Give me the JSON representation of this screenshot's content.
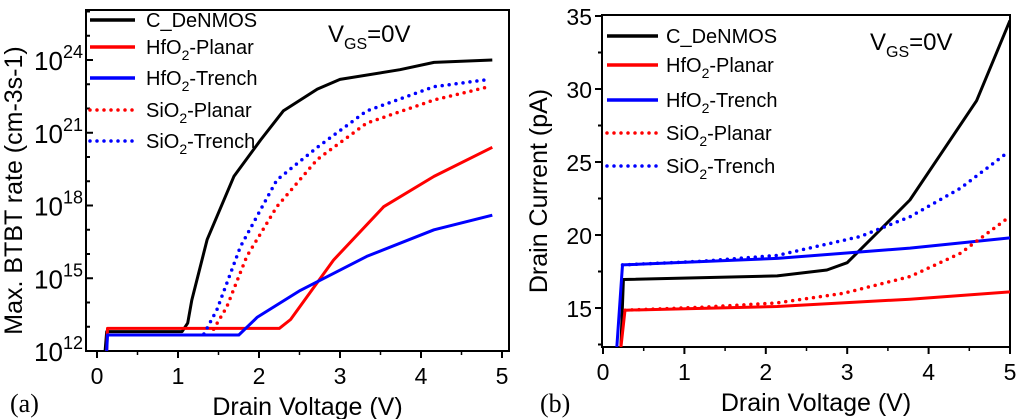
{
  "chart_data": [
    {
      "type": "line",
      "panel_label": "(a)",
      "xlabel": "Drain Voltage (V)",
      "ylabel": "Max. BTBT rate (cm-3s-1)",
      "yscale": "log",
      "xlim": [
        -0.1,
        5.1
      ],
      "ylim_exponent": [
        12,
        26
      ],
      "xticks": [
        "0",
        "1",
        "2",
        "3",
        "4",
        "5"
      ],
      "yticks": [
        {
          "base": "10",
          "exp": "12"
        },
        {
          "base": "10",
          "exp": "15"
        },
        {
          "base": "10",
          "exp": "18"
        },
        {
          "base": "10",
          "exp": "21"
        },
        {
          "base": "10",
          "exp": "24"
        }
      ],
      "annotation": {
        "main": "V",
        "sub": "GS",
        "rest": "=0V"
      },
      "legend_position": "top-left",
      "series": [
        {
          "name": "C_DeNMOS",
          "label": {
            "pre": "C_DeNMOS",
            "sub": "",
            "post": ""
          },
          "color": "#000000",
          "style": "solid",
          "points": [
            [
              0.1,
              12
            ],
            [
              0.12,
              12.8
            ],
            [
              1.05,
              12.8
            ],
            [
              1.12,
              13.15
            ],
            [
              1.17,
              14.1
            ],
            [
              1.36,
              16.6
            ],
            [
              1.69,
              19.2
            ],
            [
              2.02,
              20.7
            ],
            [
              2.3,
              21.9
            ],
            [
              2.72,
              22.8
            ],
            [
              3.0,
              23.2
            ],
            [
              3.74,
              23.6
            ],
            [
              4.16,
              23.9
            ],
            [
              4.88,
              24.0
            ]
          ]
        },
        {
          "name": "HfO2-Planar",
          "label": {
            "pre": "HfO",
            "sub": "2",
            "post": "-Planar"
          },
          "color": "#ff0000",
          "style": "solid",
          "points": [
            [
              0.12,
              12
            ],
            [
              0.13,
              12.93
            ],
            [
              2.25,
              12.93
            ],
            [
              2.39,
              13.3
            ],
            [
              2.92,
              15.75
            ],
            [
              3.54,
              17.95
            ],
            [
              4.16,
              19.2
            ],
            [
              4.88,
              20.4
            ]
          ]
        },
        {
          "name": "HfO2-Trench",
          "label": {
            "pre": "HfO",
            "sub": "2",
            "post": "-Trench"
          },
          "color": "#0000ff",
          "style": "solid",
          "points": [
            [
              0.12,
              12
            ],
            [
              0.13,
              12.66
            ],
            [
              1.75,
              12.66
            ],
            [
              1.98,
              13.4
            ],
            [
              2.51,
              14.5
            ],
            [
              3.33,
              15.9
            ],
            [
              4.16,
              17.0
            ],
            [
              4.88,
              17.6
            ]
          ]
        },
        {
          "name": "SiO2-Planar",
          "label": {
            "pre": "SiO",
            "sub": "2",
            "post": "-Planar"
          },
          "color": "#ff0000",
          "style": "dotted",
          "points": [
            [
              1.44,
              12.9
            ],
            [
              1.6,
              13.8
            ],
            [
              1.85,
              15.9
            ],
            [
              2.22,
              17.95
            ],
            [
              2.72,
              19.9
            ],
            [
              3.33,
              21.4
            ],
            [
              4.16,
              22.35
            ],
            [
              4.84,
              22.9
            ]
          ]
        },
        {
          "name": "SiO2-Trench",
          "label": {
            "pre": "SiO",
            "sub": "2",
            "post": "-Trench"
          },
          "color": "#0000ff",
          "style": "dotted",
          "points": [
            [
              1.32,
              12.7
            ],
            [
              1.48,
              13.7
            ],
            [
              1.77,
              16.3
            ],
            [
              2.22,
              19.05
            ],
            [
              2.72,
              20.4
            ],
            [
              3.33,
              21.9
            ],
            [
              4.16,
              22.9
            ],
            [
              4.84,
              23.2
            ]
          ]
        }
      ]
    },
    {
      "type": "line",
      "panel_label": "(b)",
      "xlabel": "Drain Voltage (V)",
      "ylabel": "Drain Current (pA)",
      "yscale": "linear",
      "xlim": [
        0,
        5
      ],
      "ylim": [
        12.3,
        35
      ],
      "xticks": [
        "0",
        "1",
        "2",
        "3",
        "4",
        "5"
      ],
      "yticks": [
        "15",
        "20",
        "25",
        "30",
        "35"
      ],
      "annotation": {
        "main": "V",
        "sub": "GS",
        "rest": "=0V"
      },
      "legend_position": "top-left",
      "series": [
        {
          "name": "C_DeNMOS",
          "label": {
            "pre": "C_DeNMOS",
            "sub": "",
            "post": ""
          },
          "color": "#000000",
          "style": "solid",
          "points": [
            [
              0.22,
              12.3
            ],
            [
              0.25,
              16.95
            ],
            [
              2.14,
              17.2
            ],
            [
              2.75,
              17.6
            ],
            [
              3.0,
              18.1
            ],
            [
              3.36,
              20.1
            ],
            [
              3.77,
              22.4
            ],
            [
              4.18,
              25.8
            ],
            [
              4.59,
              29.2
            ],
            [
              5.0,
              34.7
            ]
          ]
        },
        {
          "name": "HfO2-Planar",
          "label": {
            "pre": "HfO",
            "sub": "2",
            "post": "-Planar"
          },
          "color": "#ff0000",
          "style": "solid",
          "points": [
            [
              0.22,
              12.3
            ],
            [
              0.27,
              14.85
            ],
            [
              2.14,
              15.1
            ],
            [
              3.77,
              15.6
            ],
            [
              5.0,
              16.1
            ]
          ]
        },
        {
          "name": "HfO2-Trench",
          "label": {
            "pre": "HfO",
            "sub": "2",
            "post": "-Trench"
          },
          "color": "#0000ff",
          "style": "solid",
          "points": [
            [
              0.17,
              12.3
            ],
            [
              0.24,
              17.95
            ],
            [
              2.14,
              18.4
            ],
            [
              3.77,
              19.1
            ],
            [
              5.0,
              19.8
            ]
          ]
        },
        {
          "name": "SiO2-Planar",
          "label": {
            "pre": "SiO",
            "sub": "2",
            "post": "-Planar"
          },
          "color": "#ff0000",
          "style": "dotted",
          "points": [
            [
              0.27,
              14.85
            ],
            [
              1.2,
              15.05
            ],
            [
              2.14,
              15.35
            ],
            [
              2.95,
              16.0
            ],
            [
              3.77,
              17.15
            ],
            [
              4.39,
              18.75
            ],
            [
              4.96,
              21.1
            ]
          ]
        },
        {
          "name": "SiO2-Trench",
          "label": {
            "pre": "SiO",
            "sub": "2",
            "post": "-Trench"
          },
          "color": "#0000ff",
          "style": "dotted",
          "points": [
            [
              0.24,
              17.95
            ],
            [
              1.2,
              18.2
            ],
            [
              2.14,
              18.6
            ],
            [
              3.16,
              19.9
            ],
            [
              3.77,
              21.25
            ],
            [
              4.39,
              23.2
            ],
            [
              4.96,
              25.6
            ]
          ]
        }
      ]
    }
  ]
}
